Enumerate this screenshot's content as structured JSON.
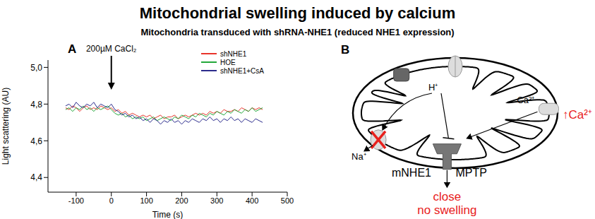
{
  "title": "Mitochondrial swelling induced by calcium",
  "subtitle": "Mitochondria transduced with shRNA-NHE1 (reduced NHE1 expression)",
  "chart_data": {
    "type": "line",
    "panel_label": "A",
    "x_label": "Time (s)",
    "y_label": "Light scattering (AU)",
    "annotation": {
      "text": "200µM CaCl₂",
      "x": 0
    },
    "legend": "upper right",
    "xlim": [
      -180,
      500
    ],
    "xticks": [
      -100,
      0,
      100,
      200,
      300,
      400,
      500
    ],
    "ylim": [
      4.32,
      5.04
    ],
    "yticks": [
      {
        "value": 4.4,
        "label": "4,4"
      },
      {
        "value": 4.6,
        "label": "4,6"
      },
      {
        "value": 4.8,
        "label": "4,8"
      },
      {
        "value": 5.0,
        "label": "5,0"
      }
    ],
    "x": [
      -130,
      -120,
      -110,
      -100,
      -90,
      -80,
      -70,
      -60,
      -50,
      -40,
      -30,
      -20,
      -10,
      0,
      10,
      20,
      30,
      40,
      50,
      60,
      70,
      80,
      90,
      100,
      110,
      120,
      130,
      140,
      150,
      160,
      170,
      180,
      190,
      200,
      210,
      220,
      230,
      240,
      250,
      260,
      270,
      280,
      290,
      300,
      310,
      320,
      330,
      340,
      350,
      360,
      370,
      380,
      390,
      400,
      410,
      420,
      430
    ],
    "series": [
      {
        "name": "shNHE1",
        "color": "#e8342b",
        "values": [
          4.78,
          4.77,
          4.79,
          4.78,
          4.76,
          4.78,
          4.79,
          4.77,
          4.78,
          4.77,
          4.79,
          4.78,
          4.77,
          4.78,
          4.76,
          4.77,
          4.75,
          4.76,
          4.74,
          4.75,
          4.74,
          4.73,
          4.74,
          4.73,
          4.74,
          4.72,
          4.73,
          4.74,
          4.72,
          4.73,
          4.73,
          4.74,
          4.72,
          4.73,
          4.74,
          4.73,
          4.74,
          4.75,
          4.74,
          4.75,
          4.74,
          4.76,
          4.75,
          4.76,
          4.75,
          4.77,
          4.76,
          4.76,
          4.77,
          4.76,
          4.78,
          4.77,
          4.76,
          4.78,
          4.77,
          4.78,
          4.77
        ]
      },
      {
        "name": "HOE",
        "color": "#22a83a",
        "values": [
          4.77,
          4.78,
          4.76,
          4.78,
          4.77,
          4.79,
          4.77,
          4.78,
          4.76,
          4.78,
          4.77,
          4.78,
          4.79,
          4.77,
          4.75,
          4.74,
          4.75,
          4.73,
          4.74,
          4.72,
          4.73,
          4.72,
          4.73,
          4.71,
          4.72,
          4.73,
          4.71,
          4.72,
          4.73,
          4.72,
          4.71,
          4.73,
          4.72,
          4.74,
          4.73,
          4.72,
          4.74,
          4.73,
          4.75,
          4.74,
          4.73,
          4.75,
          4.74,
          4.76,
          4.75,
          4.74,
          4.76,
          4.75,
          4.77,
          4.76,
          4.75,
          4.77,
          4.76,
          4.78,
          4.76,
          4.77,
          4.78
        ]
      },
      {
        "name": "shNHE1+CsA",
        "color": "#2b2b8c",
        "values": [
          4.79,
          4.8,
          4.78,
          4.81,
          4.79,
          4.78,
          4.8,
          4.79,
          4.81,
          4.78,
          4.8,
          4.79,
          4.78,
          4.8,
          4.77,
          4.76,
          4.74,
          4.75,
          4.73,
          4.74,
          4.72,
          4.73,
          4.71,
          4.72,
          4.7,
          4.72,
          4.71,
          4.69,
          4.71,
          4.7,
          4.72,
          4.7,
          4.71,
          4.69,
          4.71,
          4.7,
          4.72,
          4.71,
          4.7,
          4.72,
          4.71,
          4.73,
          4.71,
          4.72,
          4.7,
          4.72,
          4.71,
          4.73,
          4.71,
          4.72,
          4.7,
          4.72,
          4.71,
          4.7,
          4.72,
          4.71,
          4.7
        ]
      }
    ]
  },
  "diagram": {
    "panel_label": "B",
    "labels": {
      "proton": "H⁺",
      "sodium": "Na⁺",
      "calcium": "Ca²⁺",
      "calcium_rise": "↑Ca²⁺",
      "exchanger": "mNHE1",
      "pore": "MPTP",
      "outcome": [
        "close",
        "no swelling"
      ]
    }
  }
}
